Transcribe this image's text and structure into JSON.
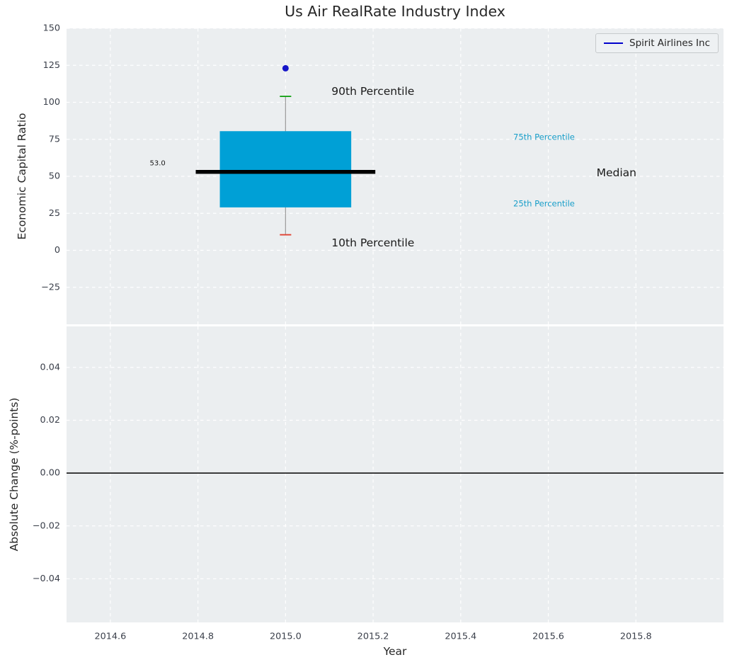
{
  "title": "Us Air RealRate Industry Index",
  "colors": {
    "figure_background": "#ffffff",
    "axes_background": "#ebeef0",
    "grid": "#ffffff",
    "box_fill": "#00a0d6",
    "median": "#000000",
    "whisker": "#999999",
    "cap_top": "#0a9e0a",
    "cap_bottom": "#e04030",
    "point": "#1515c8",
    "percentile_text": "#189ec9",
    "tick_text": "#3a3f4a",
    "title_text": "#262626"
  },
  "chart_data": [
    {
      "type": "boxplot",
      "title": "Us Air RealRate Industry Index",
      "ylabel": "Economic Capital Ratio",
      "xlim": [
        2014.5,
        2016.0
      ],
      "ylim": [
        -50,
        150
      ],
      "grid": true,
      "xticks": [
        {
          "v": 2014.6,
          "label": "2014.6"
        },
        {
          "v": 2014.8,
          "label": "2014.8"
        },
        {
          "v": 2015.0,
          "label": "2015.0"
        },
        {
          "v": 2015.2,
          "label": "2015.2"
        },
        {
          "v": 2015.4,
          "label": "2015.4"
        },
        {
          "v": 2015.6,
          "label": "2015.6"
        },
        {
          "v": 2015.8,
          "label": "2015.8"
        }
      ],
      "yticks": [
        {
          "v": 150,
          "label": "150"
        },
        {
          "v": 125,
          "label": "125"
        },
        {
          "v": 100,
          "label": "100"
        },
        {
          "v": 75,
          "label": "75"
        },
        {
          "v": 50,
          "label": "50"
        },
        {
          "v": 25,
          "label": "25"
        },
        {
          "v": 0,
          "label": "0"
        },
        {
          "v": -25,
          "label": "−25"
        }
      ],
      "box": {
        "x": 2015.0,
        "q1": 29.0,
        "q3": 80.5,
        "median": 53.0,
        "median_label": "53.0",
        "p10": 10.5,
        "p90": 104.0,
        "box_halfwidth": 0.15,
        "median_halfwidth": 0.205,
        "cap_halfwidth": 0.013
      },
      "point": {
        "x": 2015.0,
        "y": 123.0,
        "series": "Spirit Airlines Inc"
      },
      "annotations": [
        {
          "text": "90th Percentile",
          "x": 2015.105,
          "y": 107.5,
          "size": 15.5,
          "color": "#1a1a1a",
          "anchor": "start"
        },
        {
          "text": "10th Percentile",
          "x": 2015.105,
          "y": 5.0,
          "size": 15.5,
          "color": "#1a1a1a",
          "anchor": "start"
        },
        {
          "text": "75th Percentile",
          "x": 2015.52,
          "y": 76.5,
          "size": 11.5,
          "color": "#189ec9",
          "anchor": "start"
        },
        {
          "text": "25th Percentile",
          "x": 2015.52,
          "y": 31.5,
          "size": 11.5,
          "color": "#189ec9",
          "anchor": "start"
        },
        {
          "text": "Median",
          "x": 2015.71,
          "y": 52.5,
          "size": 15.5,
          "color": "#1a1a1a",
          "anchor": "start"
        },
        {
          "text": "53.0",
          "x": 2014.69,
          "y": 58.5,
          "size": 10,
          "color": "#1a1a1a",
          "anchor": "start"
        }
      ],
      "legend": {
        "position": "upper right",
        "entries": [
          {
            "label": "Spirit Airlines Inc",
            "color": "#0000cc"
          }
        ]
      }
    },
    {
      "type": "line",
      "xlabel": "Year",
      "ylabel": "Absolute Change (%-points)",
      "xlim": [
        2014.5,
        2016.0
      ],
      "ylim": [
        -0.0565,
        0.0555
      ],
      "grid": true,
      "xticks": [
        {
          "v": 2014.6,
          "label": "2014.6"
        },
        {
          "v": 2014.8,
          "label": "2014.8"
        },
        {
          "v": 2015.0,
          "label": "2015.0"
        },
        {
          "v": 2015.2,
          "label": "2015.2"
        },
        {
          "v": 2015.4,
          "label": "2015.4"
        },
        {
          "v": 2015.6,
          "label": "2015.6"
        },
        {
          "v": 2015.8,
          "label": "2015.8"
        }
      ],
      "yticks": [
        {
          "v": 0.04,
          "label": "0.04"
        },
        {
          "v": 0.02,
          "label": "0.02"
        },
        {
          "v": 0.0,
          "label": "0.00"
        },
        {
          "v": -0.02,
          "label": "−0.02"
        },
        {
          "v": -0.04,
          "label": "−0.04"
        }
      ],
      "zero_line": {
        "y": 0.0,
        "color": "#000000"
      },
      "series": []
    }
  ]
}
